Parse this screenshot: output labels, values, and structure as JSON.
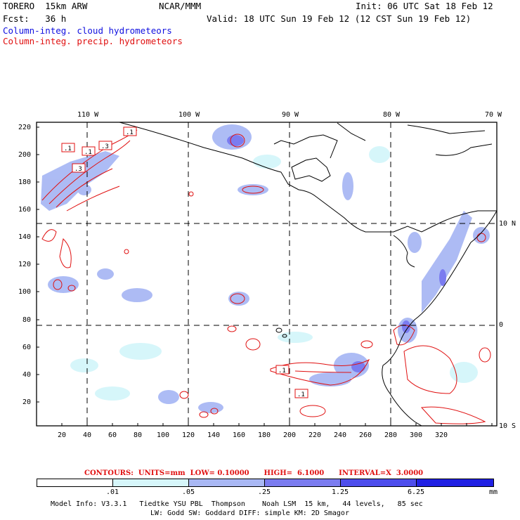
{
  "header": {
    "model": "TORERO  15km ARW",
    "org": "NCAR/MMM",
    "init": "Init: 06 UTC Sat 18 Feb 12",
    "fcst": "Fcst:   36 h",
    "valid": "Valid: 18 UTC Sun 19 Feb 12 (12 CST Sun 19 Feb 12)",
    "cloud_legend": "Column-integ. cloud hydrometeors",
    "precip_legend": "Column-integ. precip. hydrometeors"
  },
  "map": {
    "lon_labels": [
      "110 W",
      "100 W",
      "90 W",
      "80 W",
      "70 W"
    ],
    "lat_labels": [
      "10 N",
      "0",
      "10 S"
    ],
    "y_ticks": [
      "220",
      "200",
      "180",
      "160",
      "140",
      "120",
      "100",
      "80",
      "60",
      "40",
      "20"
    ],
    "x_ticks": [
      "20",
      "40",
      "60",
      "80",
      "100",
      "120",
      "140",
      "160",
      "180",
      "200",
      "220",
      "240",
      "260",
      "280",
      "300",
      "320"
    ],
    "contour_labels": [
      ".1",
      ".1",
      ".3",
      ".1",
      ".3",
      ".1",
      ".3",
      ".1"
    ]
  },
  "contours_info": {
    "label": "CONTOURS:  UNITS=mm  LOW= 0.10000      HIGH=  6.1000      INTERVAL=X  3.0000"
  },
  "colorbar": {
    "labels": [
      ".01",
      ".05",
      ".25",
      "1.25",
      "6.25"
    ],
    "units": "mm",
    "colors": [
      "#ffffff",
      "#d6f6fa",
      "#a9b8f4",
      "#7b7cf0",
      "#4d4dec",
      "#2020e4"
    ]
  },
  "footer": {
    "line1": "Model Info: V3.3.1   Tiedtke YSU PBL  Thompson    Noah LSM  15 km,   44 levels,   85 sec",
    "line2": "LW: Godd SW: Goddard DIFF: simple KM: 2D Smagor"
  }
}
